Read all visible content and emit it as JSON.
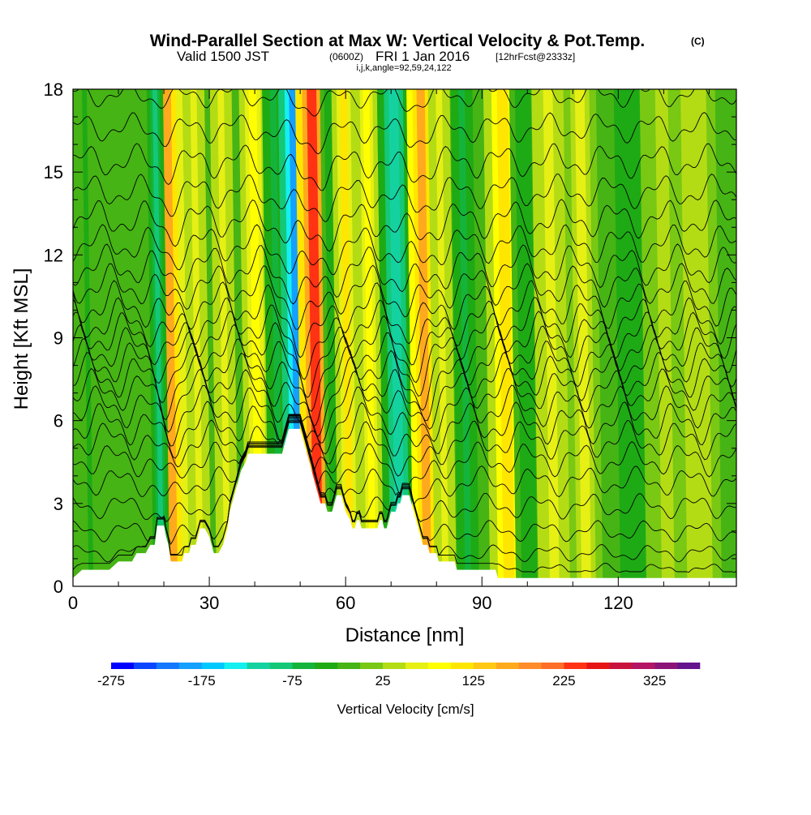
{
  "chart_data": {
    "type": "heatmap",
    "title": "Wind-Parallel Section at Max W: Vertical Velocity & Pot.Temp.",
    "title_suffix": "(C)",
    "subtitle": {
      "valid": "Valid 1500 JST",
      "utc": "(0600Z)",
      "date": "FRI 1 Jan 2016",
      "forecast": "[12hrFcst@2333z]"
    },
    "indices_label": "i,j,k,angle=92,59,24,122",
    "xlabel": "Distance [nm]",
    "ylabel": "Height [Kft MSL]",
    "xlim": [
      0,
      146
    ],
    "ylim": [
      0,
      18
    ],
    "x_ticks": [
      0,
      30,
      60,
      90,
      120
    ],
    "y_ticks": [
      0,
      3,
      6,
      9,
      12,
      15,
      18
    ],
    "colorbar": {
      "title": "Vertical Velocity [cm/s]",
      "min": -275,
      "step": 25,
      "labels": [
        -275,
        -175,
        -75,
        25,
        125,
        225,
        325
      ],
      "colors": [
        "#0000ff",
        "#0a46ff",
        "#1478ff",
        "#14a0ff",
        "#00c8ff",
        "#14f0f0",
        "#14d2a0",
        "#14c878",
        "#14b43c",
        "#1eaa14",
        "#46b414",
        "#78c814",
        "#b4dc14",
        "#e6f014",
        "#ffff00",
        "#ffe600",
        "#ffc814",
        "#ffaa1e",
        "#ff8c28",
        "#ff6e28",
        "#ff3214",
        "#e61414",
        "#c8143c",
        "#b41464",
        "#8c1478",
        "#64148c"
      ]
    },
    "streaks": [
      {
        "x": 4,
        "w": 1.5,
        "v": -30
      },
      {
        "x": 22,
        "w": 3.0,
        "v": 150
      },
      {
        "x": 19.5,
        "w": 1.5,
        "v": -80
      },
      {
        "x": 28,
        "w": 2.0,
        "v": 60
      },
      {
        "x": 34,
        "w": 2.0,
        "v": 60
      },
      {
        "x": 41,
        "w": 2.5,
        "v": 80
      },
      {
        "x": 45.5,
        "w": 2.0,
        "v": -60
      },
      {
        "x": 50,
        "w": 2.8,
        "v": -190
      },
      {
        "x": 54,
        "w": 3.0,
        "v": 230
      },
      {
        "x": 58,
        "w": 1.8,
        "v": -50
      },
      {
        "x": 61,
        "w": 2.2,
        "v": 100
      },
      {
        "x": 66,
        "w": 2.0,
        "v": 90
      },
      {
        "x": 72,
        "w": 3.0,
        "v": -110
      },
      {
        "x": 78,
        "w": 2.6,
        "v": 170
      },
      {
        "x": 82,
        "w": 2.0,
        "v": 70
      },
      {
        "x": 87,
        "w": 2.0,
        "v": -70
      },
      {
        "x": 96,
        "w": 3.5,
        "v": 110
      },
      {
        "x": 100.5,
        "w": 2.5,
        "v": -40
      },
      {
        "x": 106,
        "w": 3.0,
        "v": 60
      },
      {
        "x": 113,
        "w": 3.0,
        "v": 50
      },
      {
        "x": 124,
        "w": 5.0,
        "v": -50
      },
      {
        "x": 131,
        "w": 4.0,
        "v": 30
      },
      {
        "x": 138,
        "w": 4.0,
        "v": 45
      }
    ],
    "terrain": [
      [
        0,
        0.3
      ],
      [
        2,
        0.6
      ],
      [
        8,
        0.6
      ],
      [
        10,
        0.9
      ],
      [
        13,
        0.9
      ],
      [
        14,
        1.2
      ],
      [
        16,
        1.2
      ],
      [
        17,
        1.5
      ],
      [
        18,
        1.5
      ],
      [
        18.5,
        2.2
      ],
      [
        20,
        2.2
      ],
      [
        20.5,
        1.8
      ],
      [
        21,
        1.5
      ],
      [
        21.5,
        0.9
      ],
      [
        23,
        0.9
      ],
      [
        24,
        0.9
      ],
      [
        24.5,
        1.2
      ],
      [
        25.5,
        1.2
      ],
      [
        26,
        1.5
      ],
      [
        27,
        1.5
      ],
      [
        27.5,
        1.8
      ],
      [
        28,
        2.1
      ],
      [
        29,
        2.1
      ],
      [
        30,
        1.8
      ],
      [
        30.5,
        1.5
      ],
      [
        31,
        1.2
      ],
      [
        32,
        1.2
      ],
      [
        33,
        1.5
      ],
      [
        33.5,
        1.8
      ],
      [
        34,
        2.1
      ],
      [
        34.5,
        2.7
      ],
      [
        35,
        3.0
      ],
      [
        35.5,
        3.3
      ],
      [
        36,
        3.6
      ],
      [
        36.5,
        3.9
      ],
      [
        37,
        4.2
      ],
      [
        38,
        4.5
      ],
      [
        38.5,
        4.8
      ],
      [
        46,
        4.8
      ],
      [
        46.5,
        5.1
      ],
      [
        47,
        5.4
      ],
      [
        47.5,
        5.7
      ],
      [
        50,
        5.7
      ],
      [
        50.5,
        5.4
      ],
      [
        51,
        5.1
      ],
      [
        51.5,
        4.8
      ],
      [
        52,
        4.5
      ],
      [
        52.5,
        4.2
      ],
      [
        53,
        3.9
      ],
      [
        53.5,
        3.6
      ],
      [
        54,
        3.3
      ],
      [
        54.5,
        3.0
      ],
      [
        55.5,
        3.0
      ],
      [
        56,
        2.7
      ],
      [
        57,
        2.7
      ],
      [
        57.5,
        3.0
      ],
      [
        58,
        3.3
      ],
      [
        59,
        3.3
      ],
      [
        59.5,
        3.0
      ],
      [
        60,
        2.7
      ],
      [
        61,
        2.4
      ],
      [
        61.5,
        2.1
      ],
      [
        62,
        2.1
      ],
      [
        62.5,
        2.4
      ],
      [
        63,
        2.4
      ],
      [
        63.5,
        2.1
      ],
      [
        64,
        2.1
      ],
      [
        65,
        2.1
      ],
      [
        66,
        2.1
      ],
      [
        67,
        2.1
      ],
      [
        67.5,
        2.4
      ],
      [
        68,
        2.4
      ],
      [
        68.5,
        2.1
      ],
      [
        69,
        2.1
      ],
      [
        69.5,
        2.4
      ],
      [
        70,
        2.7
      ],
      [
        71,
        2.7
      ],
      [
        71.5,
        3.0
      ],
      [
        72,
        3.0
      ],
      [
        72.5,
        3.3
      ],
      [
        74,
        3.3
      ],
      [
        74.5,
        3.0
      ],
      [
        75,
        2.7
      ],
      [
        75.5,
        2.4
      ],
      [
        76,
        2.1
      ],
      [
        76.5,
        1.8
      ],
      [
        77,
        1.5
      ],
      [
        78,
        1.5
      ],
      [
        78.5,
        1.2
      ],
      [
        80,
        1.2
      ],
      [
        80.5,
        0.9
      ],
      [
        84,
        0.9
      ],
      [
        84.5,
        0.6
      ],
      [
        93,
        0.6
      ],
      [
        93.5,
        0.3
      ],
      [
        146,
        0.3
      ]
    ],
    "contours": [
      {
        "base": 0.6,
        "amp": 0.15,
        "dip": 0.4
      },
      {
        "base": 1.2,
        "amp": 0.2,
        "dip": 0.6
      },
      {
        "base": 2.0,
        "amp": 0.25,
        "dip": 0.9
      },
      {
        "base": 2.9,
        "amp": 0.3,
        "dip": 1.1
      },
      {
        "base": 3.8,
        "amp": 0.35,
        "dip": 1.3
      },
      {
        "base": 4.6,
        "amp": 0.4,
        "dip": 1.4
      },
      {
        "base": 5.3,
        "amp": 0.45,
        "dip": 1.5
      },
      {
        "base": 5.9,
        "amp": 0.5,
        "dip": 1.5
      },
      {
        "base": 6.5,
        "amp": 0.5,
        "dip": 1.5
      },
      {
        "base": 7.1,
        "amp": 0.5,
        "dip": 1.5
      },
      {
        "base": 7.6,
        "amp": 0.55,
        "dip": 1.5
      },
      {
        "base": 8.1,
        "amp": 0.55,
        "dip": 1.5
      },
      {
        "base": 8.6,
        "amp": 0.55,
        "dip": 1.4
      },
      {
        "base": 9.1,
        "amp": 0.55,
        "dip": 1.4
      },
      {
        "base": 9.6,
        "amp": 0.55,
        "dip": 1.3
      },
      {
        "base": 10.2,
        "amp": 0.55,
        "dip": 1.2
      },
      {
        "base": 10.9,
        "amp": 0.5,
        "dip": 1.1
      },
      {
        "base": 11.6,
        "amp": 0.5,
        "dip": 1.0
      },
      {
        "base": 12.4,
        "amp": 0.45,
        "dip": 0.9
      },
      {
        "base": 13.3,
        "amp": 0.45,
        "dip": 0.8
      },
      {
        "base": 14.3,
        "amp": 0.4,
        "dip": 0.7
      },
      {
        "base": 15.4,
        "amp": 0.4,
        "dip": 0.6
      },
      {
        "base": 16.6,
        "amp": 0.35,
        "dip": 0.5
      },
      {
        "base": 17.8,
        "amp": 0.3,
        "dip": 0.4
      }
    ]
  }
}
